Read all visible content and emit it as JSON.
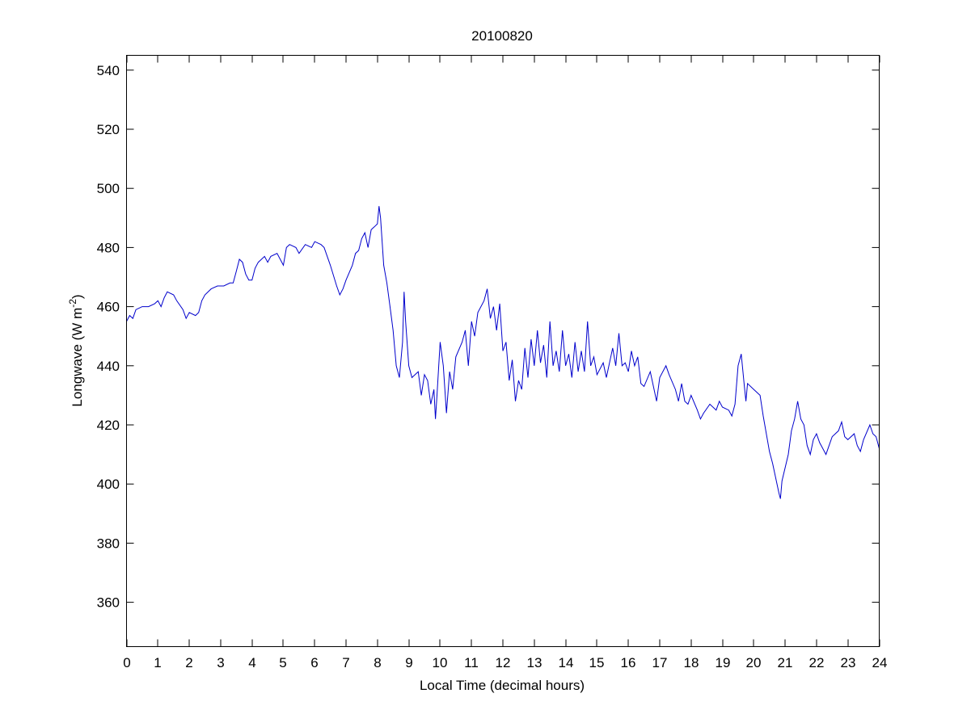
{
  "chart_data": {
    "type": "line",
    "title": "20100820",
    "xlabel": "Local Time (decimal hours)",
    "ylabel": "Longwave (W m^-2)",
    "ylabel_parts": {
      "main": "Longwave (W m",
      "sup": "-2",
      "close": ")"
    },
    "xlim": [
      0,
      24
    ],
    "ylim": [
      345,
      545
    ],
    "xticks": [
      0,
      1,
      2,
      3,
      4,
      5,
      6,
      7,
      8,
      9,
      10,
      11,
      12,
      13,
      14,
      15,
      16,
      17,
      18,
      19,
      20,
      21,
      22,
      23,
      24
    ],
    "yticks": [
      360,
      380,
      400,
      420,
      440,
      460,
      480,
      500,
      520,
      540
    ],
    "grid": false,
    "line_color": "#0000cc",
    "series": [
      {
        "x": [
          0,
          0.1,
          0.2,
          0.3,
          0.5,
          0.7,
          0.9,
          1.0,
          1.1,
          1.2,
          1.3,
          1.5,
          1.6,
          1.8,
          1.9,
          2.0,
          2.2,
          2.3,
          2.4,
          2.5,
          2.7,
          2.9,
          3.1,
          3.3,
          3.4,
          3.5,
          3.6,
          3.7,
          3.8,
          3.9,
          4.0,
          4.1,
          4.2,
          4.4,
          4.5,
          4.6,
          4.8,
          4.9,
          5.0,
          5.1,
          5.2,
          5.4,
          5.5,
          5.7,
          5.9,
          6.0,
          6.2,
          6.3,
          6.5,
          6.7,
          6.8,
          6.9,
          7.0,
          7.2,
          7.3,
          7.4,
          7.5,
          7.6,
          7.7,
          7.8,
          7.9,
          8.0,
          8.05,
          8.1,
          8.2,
          8.3,
          8.4,
          8.5,
          8.6,
          8.7,
          8.8,
          8.85,
          8.9,
          9.0,
          9.1,
          9.3,
          9.4,
          9.5,
          9.6,
          9.7,
          9.8,
          9.85,
          9.9,
          10.0,
          10.1,
          10.2,
          10.3,
          10.4,
          10.5,
          10.7,
          10.8,
          10.9,
          11.0,
          11.1,
          11.2,
          11.4,
          11.5,
          11.6,
          11.7,
          11.8,
          11.9,
          12.0,
          12.1,
          12.2,
          12.3,
          12.4,
          12.5,
          12.6,
          12.7,
          12.8,
          12.9,
          13.0,
          13.1,
          13.2,
          13.3,
          13.4,
          13.5,
          13.6,
          13.7,
          13.8,
          13.9,
          14.0,
          14.1,
          14.2,
          14.3,
          14.4,
          14.5,
          14.6,
          14.7,
          14.8,
          14.9,
          15.0,
          15.2,
          15.3,
          15.5,
          15.6,
          15.7,
          15.8,
          15.9,
          16.0,
          16.1,
          16.2,
          16.3,
          16.4,
          16.5,
          16.7,
          16.8,
          16.9,
          17.0,
          17.2,
          17.3,
          17.5,
          17.6,
          17.7,
          17.8,
          17.9,
          18.0,
          18.2,
          18.3,
          18.4,
          18.6,
          18.8,
          18.9,
          19.0,
          19.2,
          19.3,
          19.4,
          19.5,
          19.6,
          19.7,
          19.75,
          19.8,
          20.0,
          20.2,
          20.3,
          20.5,
          20.6,
          20.8,
          20.85,
          20.9,
          21.1,
          21.2,
          21.3,
          21.4,
          21.5,
          21.6,
          21.7,
          21.8,
          21.9,
          22.0,
          22.1,
          22.3,
          22.5,
          22.7,
          22.8,
          22.9,
          23.0,
          23.2,
          23.3,
          23.4,
          23.5,
          23.7,
          23.8,
          23.9,
          24.0
        ],
        "y": [
          455,
          457,
          456,
          459,
          460,
          460,
          461,
          462,
          460,
          463,
          465,
          464,
          462,
          459,
          456,
          458,
          457,
          458,
          462,
          464,
          466,
          467,
          467,
          468,
          468,
          472,
          476,
          475,
          471,
          469,
          469,
          473,
          475,
          477,
          475,
          477,
          478,
          476,
          474,
          480,
          481,
          480,
          478,
          481,
          480,
          482,
          481,
          480,
          474,
          467,
          464,
          466,
          469,
          474,
          478,
          479,
          483,
          485,
          480,
          486,
          487,
          488,
          494,
          490,
          474,
          468,
          460,
          452,
          440,
          436,
          448,
          465,
          455,
          440,
          436,
          438,
          430,
          437,
          435,
          427,
          432,
          422,
          430,
          448,
          440,
          424,
          438,
          432,
          443,
          448,
          452,
          440,
          455,
          450,
          458,
          462,
          466,
          456,
          460,
          452,
          461,
          445,
          448,
          435,
          442,
          428,
          435,
          432,
          446,
          436,
          449,
          440,
          452,
          441,
          447,
          436,
          455,
          440,
          445,
          438,
          452,
          440,
          444,
          436,
          448,
          438,
          445,
          438,
          455,
          440,
          443,
          437,
          441,
          436,
          446,
          440,
          451,
          440,
          441,
          438,
          445,
          440,
          443,
          434,
          433,
          438,
          433,
          428,
          436,
          440,
          437,
          432,
          428,
          434,
          428,
          427,
          430,
          425,
          422,
          424,
          427,
          425,
          428,
          426,
          425,
          423,
          427,
          440,
          444,
          433,
          428,
          434,
          432,
          430,
          423,
          411,
          407,
          397,
          395,
          401,
          410,
          418,
          422,
          428,
          422,
          420,
          413,
          410,
          415,
          417,
          414,
          410,
          416,
          418,
          421,
          416,
          415,
          417,
          413,
          411,
          415,
          420,
          417,
          416,
          412
        ]
      }
    ]
  }
}
